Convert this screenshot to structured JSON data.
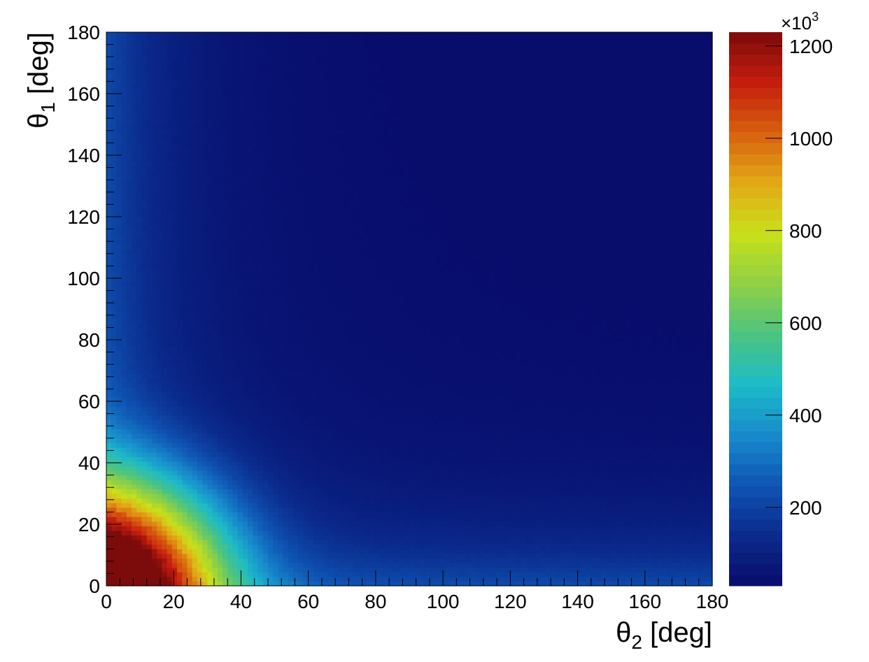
{
  "chart_data": {
    "type": "heatmap",
    "title": "",
    "xlabel": {
      "symbol": "θ",
      "subscript": "2",
      "unit": " [deg]"
    },
    "ylabel": {
      "symbol": "θ",
      "subscript": "1",
      "unit": " [deg]"
    },
    "xlim": [
      0,
      180
    ],
    "ylim": [
      0,
      180
    ],
    "x_ticks": [
      0,
      20,
      40,
      60,
      80,
      100,
      120,
      140,
      160,
      180
    ],
    "y_ticks": [
      0,
      20,
      40,
      60,
      80,
      100,
      120,
      140,
      160,
      180
    ],
    "colorbar": {
      "min": 30000,
      "max": 1230000,
      "ticks": [
        200,
        400,
        600,
        800,
        1000,
        1200
      ],
      "multiplier_base": "×10",
      "multiplier_exp": "3",
      "palette": "rainbow (dark blue → cyan → green → yellow → orange → red → dark red)",
      "palette_stops": [
        "#080c6b",
        "#0a2a8c",
        "#0f55b4",
        "#178bcc",
        "#1dbbc8",
        "#4cc480",
        "#8fd046",
        "#c9e019",
        "#e2a917",
        "#d8600e",
        "#c51d0e",
        "#7c0b0b"
      ]
    },
    "peak": {
      "x": 0,
      "y": 0,
      "value": 1230000
    },
    "description_of_values": [
      {
        "x": 0,
        "y": 0,
        "value": 1230000
      },
      {
        "x": 20,
        "y": 0,
        "value": 1050000
      },
      {
        "x": 0,
        "y": 20,
        "value": 1050000
      },
      {
        "x": 30,
        "y": 0,
        "value": 800000
      },
      {
        "x": 0,
        "y": 30,
        "value": 800000
      },
      {
        "x": 40,
        "y": 0,
        "value": 550000
      },
      {
        "x": 0,
        "y": 40,
        "value": 550000
      },
      {
        "x": 60,
        "y": 0,
        "value": 330000
      },
      {
        "x": 0,
        "y": 60,
        "value": 330000
      },
      {
        "x": 100,
        "y": 0,
        "value": 230000
      },
      {
        "x": 180,
        "y": 0,
        "value": 220000
      },
      {
        "x": 0,
        "y": 180,
        "value": 200000
      },
      {
        "x": 60,
        "y": 60,
        "value": 90000
      },
      {
        "x": 120,
        "y": 120,
        "value": 35000
      },
      {
        "x": 180,
        "y": 180,
        "value": 30000
      }
    ]
  }
}
